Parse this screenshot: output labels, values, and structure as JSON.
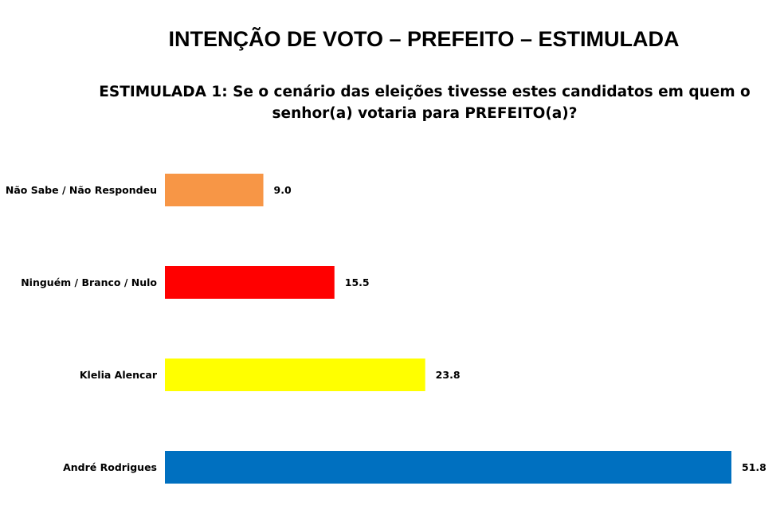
{
  "title": "INTENÇÃO DE VOTO – PREFEITO – ESTIMULADA",
  "subtitle": "ESTIMULADA 1: Se o cenário das eleições tivesse estes candidatos em quem o senhor(a) votaria para PREFEITO(a)?",
  "chart_data": {
    "type": "bar",
    "orientation": "horizontal",
    "categories": [
      "Não Sabe / Não Respondeu",
      "Ninguém / Branco / Nulo",
      "Klelia Alencar",
      "André Rodrigues"
    ],
    "values": [
      9.0,
      15.5,
      23.8,
      51.8
    ],
    "value_labels": [
      "9.0",
      "15.5",
      "23.8",
      "51.8"
    ],
    "colors": [
      "#F79646",
      "#FF0000",
      "#FFFF00",
      "#0070C0"
    ],
    "xlim": [
      0,
      51.8
    ],
    "grid": false,
    "legend": "none",
    "title": "INTENÇÃO DE VOTO – PREFEITO – ESTIMULADA",
    "xlabel": "",
    "ylabel": ""
  }
}
